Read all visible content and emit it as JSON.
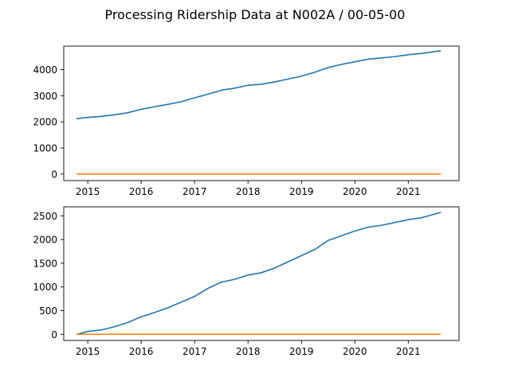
{
  "figure": {
    "suptitle": "Processing Ridership Data at N002A / 00-05-00"
  },
  "colors": {
    "series_blue": "#1f77b4",
    "series_orange": "#ff7f0e",
    "axes": "#000000",
    "background": "#ffffff"
  },
  "chart_data": [
    {
      "type": "line",
      "title": "",
      "xlabel": "",
      "ylabel": "",
      "grid": false,
      "legend": "none",
      "xlim": [
        2014.55,
        2021.95
      ],
      "ylim": [
        -250,
        4900
      ],
      "xticks": [
        2015,
        2016,
        2017,
        2018,
        2019,
        2020,
        2021
      ],
      "xtick_labels": [
        "2015",
        "2016",
        "2017",
        "2018",
        "2019",
        "2020",
        "2021"
      ],
      "yticks": [
        0,
        1000,
        2000,
        3000,
        4000
      ],
      "ytick_labels": [
        "0",
        "1000",
        "2000",
        "3000",
        "4000"
      ],
      "series": [
        {
          "color": "#1f77b4",
          "x": [
            2014.8,
            2015.0,
            2015.25,
            2015.5,
            2015.75,
            2016.0,
            2016.25,
            2016.5,
            2016.75,
            2017.0,
            2017.25,
            2017.5,
            2017.75,
            2018.0,
            2018.25,
            2018.5,
            2018.75,
            2019.0,
            2019.25,
            2019.5,
            2019.75,
            2020.0,
            2020.25,
            2020.5,
            2020.75,
            2021.0,
            2021.25,
            2021.6
          ],
          "y": [
            2120,
            2170,
            2210,
            2270,
            2350,
            2480,
            2580,
            2670,
            2770,
            2920,
            3060,
            3210,
            3290,
            3400,
            3440,
            3530,
            3640,
            3750,
            3900,
            4080,
            4200,
            4300,
            4400,
            4450,
            4500,
            4570,
            4620,
            4720
          ]
        },
        {
          "color": "#ff7f0e",
          "x": [
            2014.8,
            2021.6
          ],
          "y": [
            0,
            0
          ]
        }
      ]
    },
    {
      "type": "line",
      "title": "",
      "xlabel": "",
      "ylabel": "",
      "grid": false,
      "legend": "none",
      "xlim": [
        2014.55,
        2021.95
      ],
      "ylim": [
        -130,
        2690
      ],
      "xticks": [
        2015,
        2016,
        2017,
        2018,
        2019,
        2020,
        2021
      ],
      "xtick_labels": [
        "2015",
        "2016",
        "2017",
        "2018",
        "2019",
        "2020",
        "2021"
      ],
      "yticks": [
        0,
        500,
        1000,
        1500,
        2000,
        2500
      ],
      "ytick_labels": [
        "0",
        "500",
        "1000",
        "1500",
        "2000",
        "2500"
      ],
      "series": [
        {
          "color": "#1f77b4",
          "x": [
            2014.8,
            2015.0,
            2015.25,
            2015.5,
            2015.75,
            2016.0,
            2016.25,
            2016.5,
            2016.75,
            2017.0,
            2017.25,
            2017.5,
            2017.75,
            2018.0,
            2018.25,
            2018.5,
            2018.75,
            2019.0,
            2019.25,
            2019.5,
            2019.75,
            2020.0,
            2020.25,
            2020.5,
            2020.75,
            2021.0,
            2021.25,
            2021.6
          ],
          "y": [
            0,
            60,
            90,
            160,
            250,
            370,
            460,
            560,
            680,
            800,
            970,
            1100,
            1160,
            1250,
            1300,
            1400,
            1530,
            1660,
            1790,
            1980,
            2080,
            2180,
            2260,
            2300,
            2360,
            2420,
            2460,
            2570
          ]
        },
        {
          "color": "#ff7f0e",
          "x": [
            2014.8,
            2021.6
          ],
          "y": [
            0,
            0
          ]
        }
      ]
    }
  ]
}
